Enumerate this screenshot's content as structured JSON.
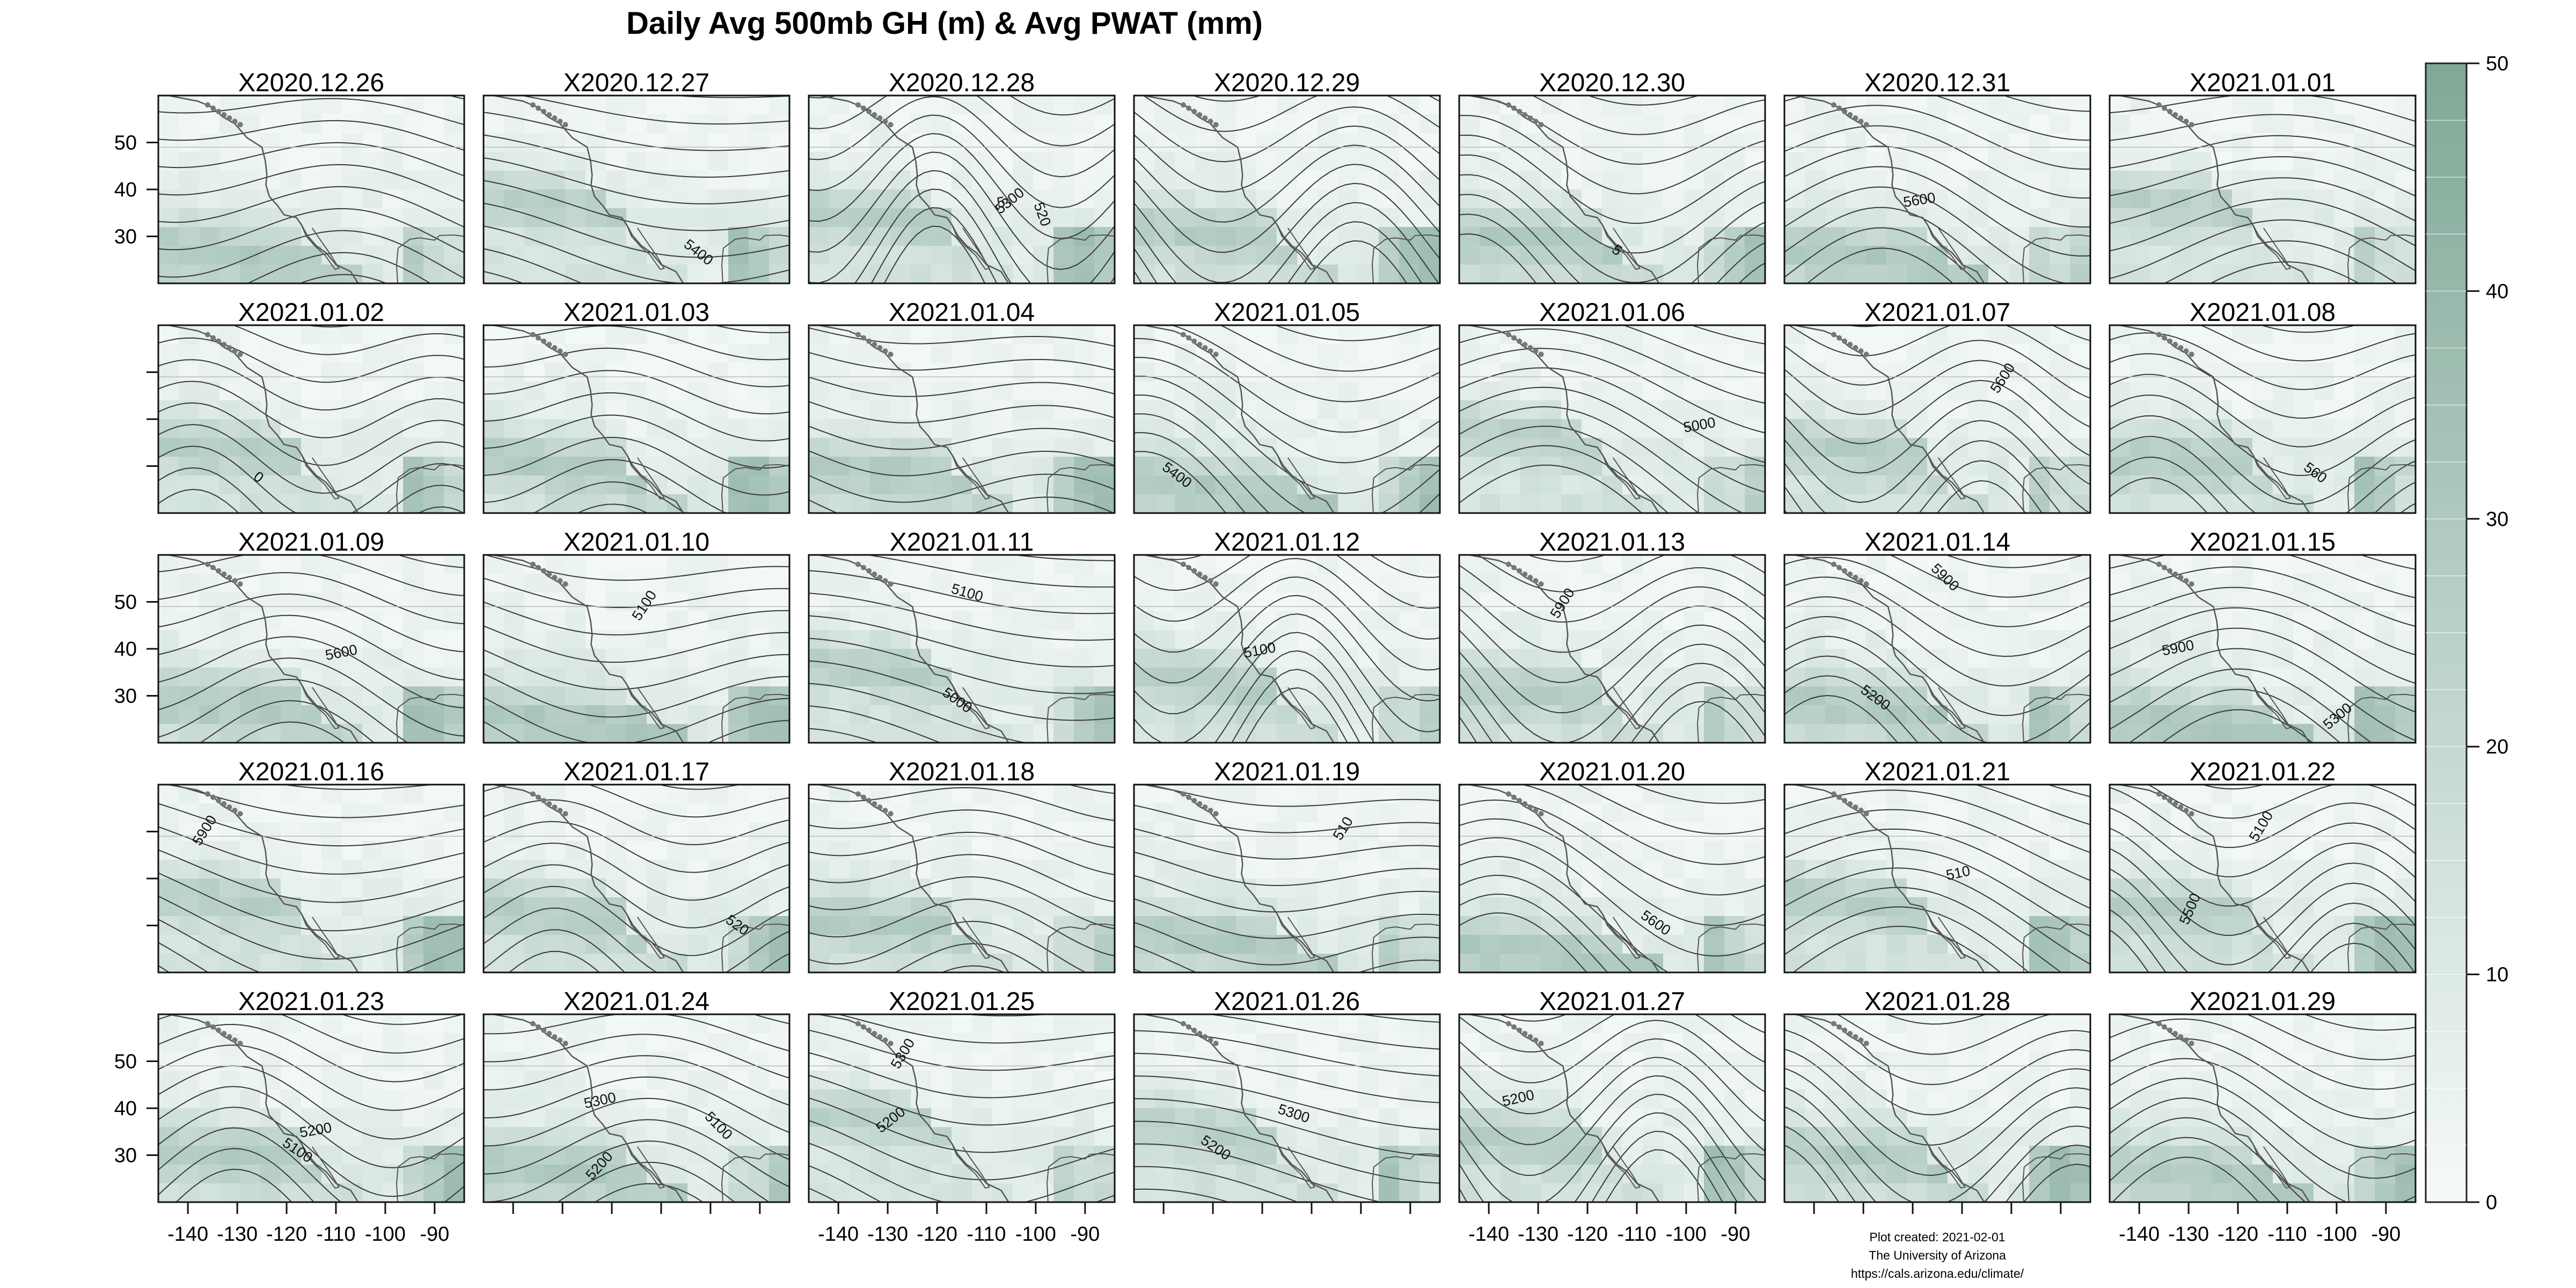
{
  "title": "Daily Avg 500mb GH (m) & Avg PWAT (mm)",
  "colors": {
    "fill_low": "#f2f8f6",
    "fill_high": "#7fa897",
    "contour": "#3a3a3a",
    "coast": "#555555"
  },
  "panels": [
    {
      "label": "X2020.12.26",
      "contour_labels": []
    },
    {
      "label": "X2020.12.27",
      "contour_labels": [
        "5400"
      ]
    },
    {
      "label": "X2020.12.28",
      "contour_labels": [
        "5",
        "520",
        "5300"
      ]
    },
    {
      "label": "X2020.12.29",
      "contour_labels": []
    },
    {
      "label": "X2020.12.30",
      "contour_labels": [
        "5"
      ]
    },
    {
      "label": "X2020.12.31",
      "contour_labels": [
        "5600"
      ]
    },
    {
      "label": "X2021.01.01",
      "contour_labels": []
    },
    {
      "label": "X2021.01.02",
      "contour_labels": [
        "0"
      ]
    },
    {
      "label": "X2021.01.03",
      "contour_labels": []
    },
    {
      "label": "X2021.01.04",
      "contour_labels": []
    },
    {
      "label": "X2021.01.05",
      "contour_labels": [
        "5400"
      ]
    },
    {
      "label": "X2021.01.06",
      "contour_labels": [
        "5000"
      ]
    },
    {
      "label": "X2021.01.07",
      "contour_labels": [
        "5600"
      ]
    },
    {
      "label": "X2021.01.08",
      "contour_labels": [
        "560"
      ]
    },
    {
      "label": "X2021.01.09",
      "contour_labels": [
        "5600"
      ]
    },
    {
      "label": "X2021.01.10",
      "contour_labels": [
        "5100"
      ]
    },
    {
      "label": "X2021.01.11",
      "contour_labels": [
        "5000",
        "5100"
      ]
    },
    {
      "label": "X2021.01.12",
      "contour_labels": [
        "5100"
      ]
    },
    {
      "label": "X2021.01.13",
      "contour_labels": [
        "5900"
      ]
    },
    {
      "label": "X2021.01.14",
      "contour_labels": [
        "5200",
        "5900"
      ]
    },
    {
      "label": "X2021.01.15",
      "contour_labels": [
        "5900",
        "5300"
      ]
    },
    {
      "label": "X2021.01.16",
      "contour_labels": [
        "5900"
      ]
    },
    {
      "label": "X2021.01.17",
      "contour_labels": [
        "520"
      ]
    },
    {
      "label": "X2021.01.18",
      "contour_labels": []
    },
    {
      "label": "X2021.01.19",
      "contour_labels": [
        "510"
      ]
    },
    {
      "label": "X2021.01.20",
      "contour_labels": [
        "5600"
      ]
    },
    {
      "label": "X2021.01.21",
      "contour_labels": [
        "510"
      ]
    },
    {
      "label": "X2021.01.22",
      "contour_labels": [
        "5100",
        "5500"
      ]
    },
    {
      "label": "X2021.01.23",
      "contour_labels": [
        "5100",
        "5200"
      ]
    },
    {
      "label": "X2021.01.24",
      "contour_labels": [
        "5300",
        "5100",
        "5200"
      ]
    },
    {
      "label": "X2021.01.25",
      "contour_labels": [
        "5300",
        "5200"
      ]
    },
    {
      "label": "X2021.01.26",
      "contour_labels": [
        "5200",
        "5300"
      ]
    },
    {
      "label": "X2021.01.27",
      "contour_labels": [
        "5200"
      ]
    },
    {
      "label": "X2021.01.28",
      "contour_labels": []
    },
    {
      "label": "X2021.01.29",
      "contour_labels": []
    }
  ],
  "axes": {
    "lon_ticks": [
      -140,
      -130,
      -120,
      -110,
      -100,
      -90
    ],
    "lon_tick_labels": [
      "-140",
      "-130",
      "-120",
      "-110",
      "-100",
      "-90"
    ],
    "lat_ticks": [
      30,
      40,
      50
    ],
    "lat_tick_labels": [
      "30",
      "40",
      "50"
    ],
    "lon_range": [
      -146,
      -84
    ],
    "lat_range": [
      20,
      60
    ]
  },
  "colorbar": {
    "min": 0,
    "max": 50,
    "step": 2.5,
    "ticks": [
      0,
      10,
      20,
      30,
      40,
      50
    ],
    "tick_labels": [
      "0",
      "10",
      "20",
      "30",
      "40",
      "50"
    ]
  },
  "footer": {
    "line1": "Plot created: 2021-02-01",
    "line2": "The University of Arizona",
    "line3": "https://cals.arizona.edu/climate/"
  }
}
